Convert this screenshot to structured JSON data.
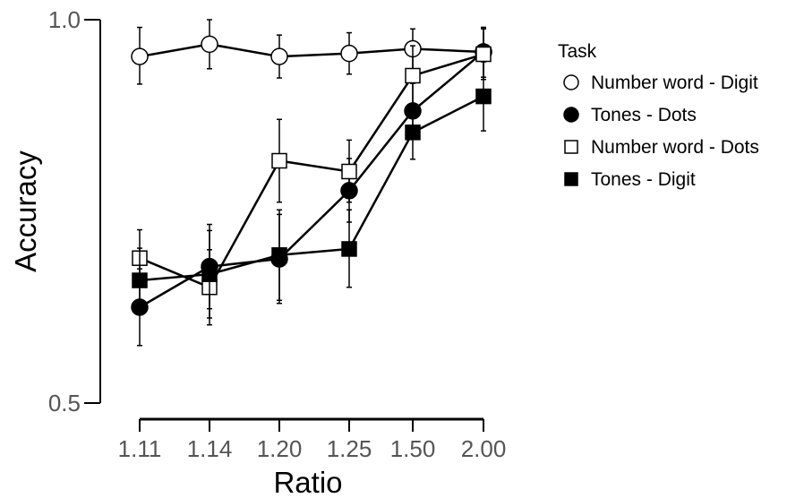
{
  "chart_data": {
    "type": "line",
    "xlabel": "Ratio",
    "ylabel": "Accuracy",
    "categories": [
      "1.11",
      "1.14",
      "1.20",
      "1.25",
      "1.50",
      "2.00"
    ],
    "ylim": [
      0.5,
      1.0
    ],
    "y_ticks": [
      "0.5",
      "1.0"
    ],
    "grid": false,
    "legend": {
      "title": "Task",
      "position": "right"
    },
    "series": [
      {
        "name": "Number word - Digit",
        "marker": "circle",
        "fill": "#ffffff",
        "color": "#000000",
        "values": [
          0.952,
          0.968,
          0.952,
          0.956,
          0.962,
          0.958
        ],
        "err_low": [
          0.916,
          0.936,
          0.924,
          0.929,
          0.936,
          0.925
        ],
        "err_high": [
          0.99,
          1.0,
          0.98,
          0.983,
          0.988,
          0.99
        ]
      },
      {
        "name": "Tones - Dots",
        "marker": "circle",
        "fill": "#000000",
        "color": "#000000",
        "values": [
          0.625,
          0.678,
          0.688,
          0.777,
          0.881,
          0.958
        ],
        "err_low": [
          0.575,
          0.623,
          0.63,
          0.736,
          0.845,
          0.925
        ],
        "err_high": [
          0.675,
          0.733,
          0.746,
          0.819,
          0.917,
          0.99
        ]
      },
      {
        "name": "Number word - Dots",
        "marker": "square",
        "fill": "#ffffff",
        "color": "#000000",
        "values": [
          0.689,
          0.651,
          0.816,
          0.802,
          0.927,
          0.955
        ],
        "err_low": [
          0.652,
          0.602,
          0.762,
          0.762,
          0.888,
          0.922
        ],
        "err_high": [
          0.726,
          0.7,
          0.87,
          0.843,
          0.966,
          0.988
        ]
      },
      {
        "name": "Tones - Digit",
        "marker": "square",
        "fill": "#000000",
        "color": "#000000",
        "values": [
          0.66,
          0.668,
          0.693,
          0.701,
          0.853,
          0.9
        ],
        "err_low": [
          0.62,
          0.611,
          0.634,
          0.651,
          0.818,
          0.855
        ],
        "err_high": [
          0.702,
          0.725,
          0.752,
          0.752,
          0.888,
          0.945
        ]
      }
    ]
  }
}
